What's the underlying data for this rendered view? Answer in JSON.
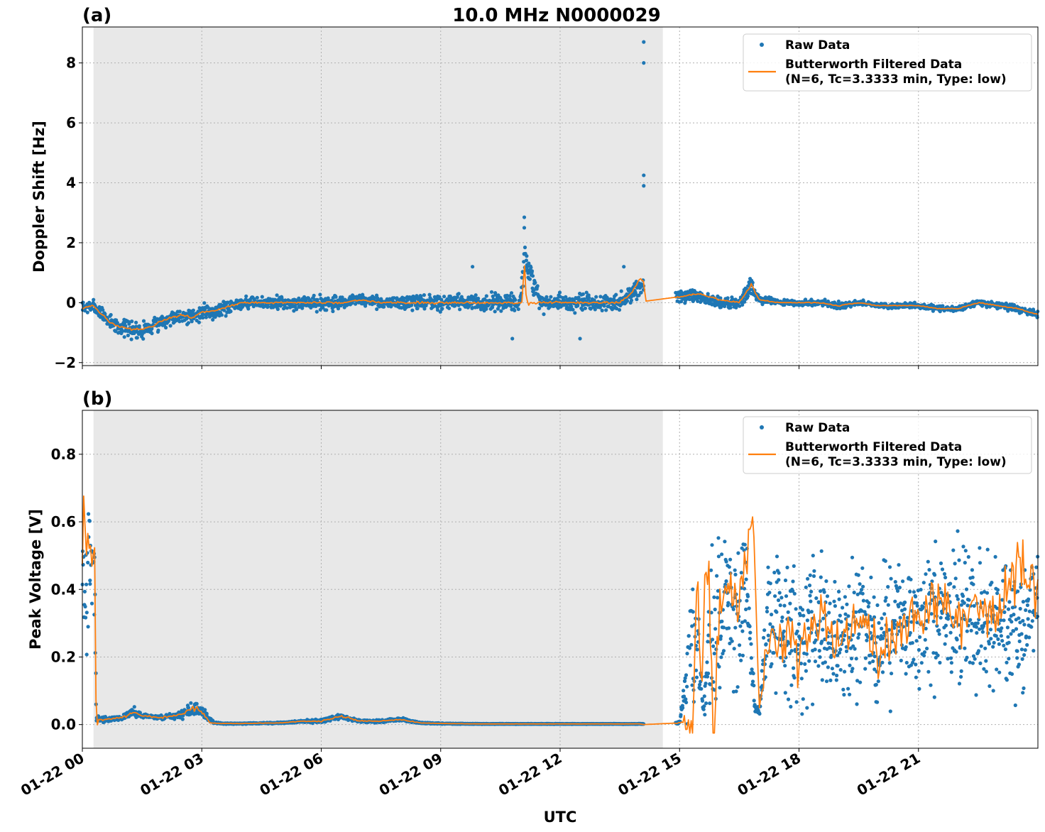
{
  "figure": {
    "title": "10.0 MHz N0000029",
    "xlabel": "UTC",
    "x_tick_labels": [
      "01-22 00",
      "01-22 03",
      "01-22 06",
      "01-22 09",
      "01-22 12",
      "01-22 15",
      "01-22 18",
      "01-22 21"
    ],
    "colors": {
      "raw": "#1f77b4",
      "filtered": "#ff7f0e",
      "shade": "#e8e8e8"
    }
  },
  "chart_data": [
    {
      "type": "scatter",
      "panel": "(a)",
      "title": "10.0 MHz N0000029",
      "ylabel": "Doppler Shift [Hz]",
      "xlabel": "",
      "x_unit": "hours UTC on 01-22",
      "xlim": [
        0,
        24
      ],
      "ylim": [
        -2.1,
        9.2
      ],
      "yticks": [
        -2,
        0,
        2,
        4,
        6,
        8
      ],
      "y_tick_labels": [
        "−2",
        "0",
        "2",
        "4",
        "6",
        "8"
      ],
      "grid": true,
      "legend_position": "top-right",
      "shaded_interval": [
        0.28,
        14.58
      ],
      "gap_interval": [
        14.1,
        14.9
      ],
      "series": [
        {
          "name": "Raw Data",
          "style": "points",
          "x": [
            0,
            0.25,
            0.5,
            0.75,
            1,
            1.25,
            1.5,
            1.75,
            2,
            2.25,
            2.5,
            2.75,
            3,
            3.25,
            3.5,
            3.75,
            4,
            4.5,
            5,
            5.5,
            6,
            6.5,
            7,
            7.5,
            8,
            8.5,
            9,
            9.5,
            10,
            10.5,
            11,
            11.1,
            11.5,
            12,
            12.5,
            13,
            13.5,
            13.8,
            14.1,
            15,
            15.5,
            16,
            16.5,
            16.8,
            17,
            17.5,
            18,
            18.5,
            19,
            19.5,
            20,
            20.5,
            21,
            21.5,
            22,
            22.5,
            23,
            23.5,
            24
          ],
          "y": [
            -0.2,
            -0.1,
            -0.4,
            -0.7,
            -0.8,
            -0.9,
            -0.9,
            -0.8,
            -0.6,
            -0.5,
            -0.4,
            -0.5,
            -0.3,
            -0.3,
            -0.2,
            -0.1,
            0.0,
            0.0,
            0.0,
            0.0,
            0.0,
            0.0,
            0.1,
            0.0,
            0.0,
            0.0,
            0.0,
            0.0,
            0.0,
            0.0,
            0.0,
            1.5,
            0.0,
            0.0,
            0.0,
            0.0,
            0.0,
            0.3,
            0.6,
            0.2,
            0.2,
            0.0,
            0.0,
            0.6,
            0.1,
            0.0,
            0.0,
            0.0,
            -0.1,
            0.0,
            -0.1,
            -0.1,
            -0.1,
            -0.2,
            -0.2,
            0.0,
            -0.1,
            -0.2,
            -0.4
          ],
          "spread": [
            0.3,
            0.3,
            0.35,
            0.4,
            0.4,
            0.4,
            0.4,
            0.35,
            0.35,
            0.35,
            0.3,
            0.4,
            0.35,
            0.35,
            0.35,
            0.35,
            0.3,
            0.3,
            0.3,
            0.3,
            0.35,
            0.35,
            0.3,
            0.3,
            0.35,
            0.35,
            0.4,
            0.4,
            0.4,
            0.4,
            0.4,
            0.9,
            0.4,
            0.4,
            0.4,
            0.4,
            0.4,
            0.45,
            0.5,
            0.3,
            0.3,
            0.25,
            0.25,
            0.45,
            0.2,
            0.15,
            0.15,
            0.15,
            0.2,
            0.12,
            0.12,
            0.12,
            0.15,
            0.15,
            0.15,
            0.15,
            0.15,
            0.15,
            0.2
          ],
          "outliers": [
            [
              14.1,
              8.7
            ],
            [
              14.1,
              8.0
            ],
            [
              14.1,
              4.25
            ],
            [
              14.1,
              3.9
            ],
            [
              11.1,
              2.85
            ],
            [
              11.1,
              2.5
            ],
            [
              9.8,
              1.2
            ],
            [
              13.6,
              1.2
            ],
            [
              10.8,
              -1.2
            ],
            [
              12.5,
              -1.2
            ]
          ]
        },
        {
          "name": "Butterworth Filtered Data\n(N=6, Tc=3.3333 min, Type: low)",
          "style": "line",
          "x": [
            0,
            0.25,
            0.5,
            0.75,
            1,
            1.25,
            1.5,
            1.75,
            2,
            2.25,
            2.5,
            2.75,
            3,
            3.25,
            3.5,
            3.75,
            4,
            4.5,
            5,
            5.5,
            6,
            6.5,
            7,
            7.5,
            8,
            8.5,
            9,
            9.5,
            10,
            10.5,
            11,
            11.05,
            11.1,
            11.15,
            11.5,
            12,
            12.5,
            13,
            13.5,
            13.8,
            14.0,
            14.1,
            14.15,
            15,
            15.5,
            16,
            16.5,
            16.8,
            17,
            17.5,
            18,
            18.5,
            19,
            19.5,
            20,
            20.5,
            21,
            21.5,
            22,
            22.5,
            23,
            23.5,
            24
          ],
          "y": [
            -0.2,
            -0.1,
            -0.4,
            -0.7,
            -0.8,
            -0.9,
            -0.9,
            -0.8,
            -0.6,
            -0.5,
            -0.4,
            -0.5,
            -0.3,
            -0.3,
            -0.2,
            -0.1,
            0.0,
            0.0,
            0.0,
            0.0,
            0.0,
            0.0,
            0.1,
            0.0,
            0.0,
            0.0,
            0.0,
            0.0,
            0.0,
            0.0,
            0.0,
            0.0,
            1.5,
            0.0,
            0.0,
            0.0,
            0.0,
            0.0,
            0.0,
            0.3,
            0.8,
            0.7,
            0.05,
            0.2,
            0.3,
            0.1,
            0.0,
            0.6,
            0.1,
            0.0,
            0.0,
            0.0,
            -0.1,
            0.0,
            -0.1,
            -0.1,
            -0.1,
            -0.2,
            -0.2,
            0.0,
            -0.1,
            -0.2,
            -0.4
          ]
        }
      ]
    },
    {
      "type": "scatter",
      "panel": "(b)",
      "title": "",
      "ylabel": "Peak Voltage [V]",
      "xlabel": "UTC",
      "x_unit": "hours UTC on 01-22",
      "xlim": [
        0,
        24
      ],
      "ylim": [
        -0.07,
        0.93
      ],
      "yticks": [
        0.0,
        0.2,
        0.4,
        0.6,
        0.8
      ],
      "y_tick_labels": [
        "0.0",
        "0.2",
        "0.4",
        "0.6",
        "0.8"
      ],
      "grid": true,
      "legend_position": "top-right",
      "shaded_interval": [
        0.28,
        14.58
      ],
      "gap_interval": [
        14.1,
        14.9
      ],
      "series": [
        {
          "name": "Raw Data",
          "style": "points",
          "x": [
            0,
            0.1,
            0.2,
            0.3,
            0.35,
            0.5,
            1,
            1.3,
            1.5,
            2,
            2.5,
            2.8,
            3.0,
            3.3,
            3.5,
            4,
            5,
            5.5,
            6,
            6.5,
            7,
            7.5,
            8,
            8.5,
            9,
            10,
            11,
            12,
            13,
            14,
            14.1,
            15,
            15.4,
            15.6,
            15.8,
            16,
            16.2,
            16.5,
            16.7,
            16.9,
            17.0,
            17.2,
            17.5,
            18,
            18.5,
            19,
            19.5,
            20,
            20.5,
            21,
            21.5,
            22,
            22.5,
            23,
            23.5,
            24
          ],
          "y": [
            0.45,
            0.4,
            0.5,
            0.5,
            0.02,
            0.015,
            0.02,
            0.04,
            0.025,
            0.02,
            0.03,
            0.05,
            0.04,
            0.005,
            0.003,
            0.003,
            0.005,
            0.01,
            0.01,
            0.025,
            0.01,
            0.01,
            0.015,
            0.005,
            0.003,
            0.002,
            0.002,
            0.002,
            0.002,
            0.002,
            0.002,
            0.005,
            0.3,
            0.05,
            0.3,
            0.3,
            0.35,
            0.3,
            0.4,
            0.05,
            0.04,
            0.3,
            0.3,
            0.25,
            0.3,
            0.25,
            0.3,
            0.25,
            0.3,
            0.3,
            0.3,
            0.35,
            0.3,
            0.3,
            0.3,
            0.35
          ],
          "spread": [
            0.3,
            0.3,
            0.3,
            0.3,
            0.01,
            0.01,
            0.01,
            0.02,
            0.01,
            0.01,
            0.015,
            0.03,
            0.03,
            0.003,
            0.002,
            0.002,
            0.003,
            0.005,
            0.008,
            0.012,
            0.006,
            0.006,
            0.008,
            0.003,
            0.002,
            0.001,
            0.001,
            0.001,
            0.001,
            0.001,
            0.001,
            0.005,
            0.4,
            0.03,
            0.4,
            0.35,
            0.3,
            0.35,
            0.35,
            0.03,
            0.02,
            0.25,
            0.3,
            0.25,
            0.28,
            0.25,
            0.28,
            0.25,
            0.28,
            0.28,
            0.28,
            0.3,
            0.28,
            0.28,
            0.28,
            0.3
          ]
        },
        {
          "name": "Butterworth Filtered Data\n(N=6, Tc=3.3333 min, Type: low)",
          "style": "line",
          "x": [
            0,
            0.05,
            0.1,
            0.15,
            0.2,
            0.25,
            0.3,
            0.35,
            0.4,
            0.5,
            1,
            1.3,
            1.5,
            2,
            2.5,
            2.8,
            3.0,
            3.2,
            3.5,
            4,
            5,
            5.5,
            6,
            6.5,
            7,
            7.5,
            8,
            8.5,
            9,
            10,
            11,
            12,
            13,
            14,
            14.1,
            15,
            15.35,
            15.45,
            15.55,
            15.65,
            15.75,
            15.85,
            16,
            16.2,
            16.5,
            16.7,
            16.85,
            17.0,
            17.2,
            17.5,
            18,
            18.5,
            19,
            19.5,
            20,
            20.5,
            21,
            21.5,
            22,
            22.5,
            23,
            23.5,
            24
          ],
          "y": [
            0.45,
            0.7,
            0.5,
            0.6,
            0.55,
            0.4,
            0.65,
            -0.02,
            0.015,
            0.015,
            0.02,
            0.035,
            0.025,
            0.02,
            0.03,
            0.05,
            0.04,
            0.005,
            0.003,
            0.003,
            0.005,
            0.01,
            0.01,
            0.025,
            0.01,
            0.01,
            0.015,
            0.005,
            0.003,
            0.002,
            0.002,
            0.002,
            0.002,
            0.002,
            0.0,
            0.005,
            -0.02,
            0.5,
            0.05,
            0.5,
            0.4,
            -0.01,
            0.3,
            0.45,
            0.35,
            0.55,
            0.63,
            0.05,
            0.25,
            0.3,
            0.2,
            0.3,
            0.25,
            0.35,
            0.2,
            0.3,
            0.3,
            0.4,
            0.3,
            0.35,
            0.3,
            0.5,
            0.35
          ]
        }
      ]
    }
  ]
}
